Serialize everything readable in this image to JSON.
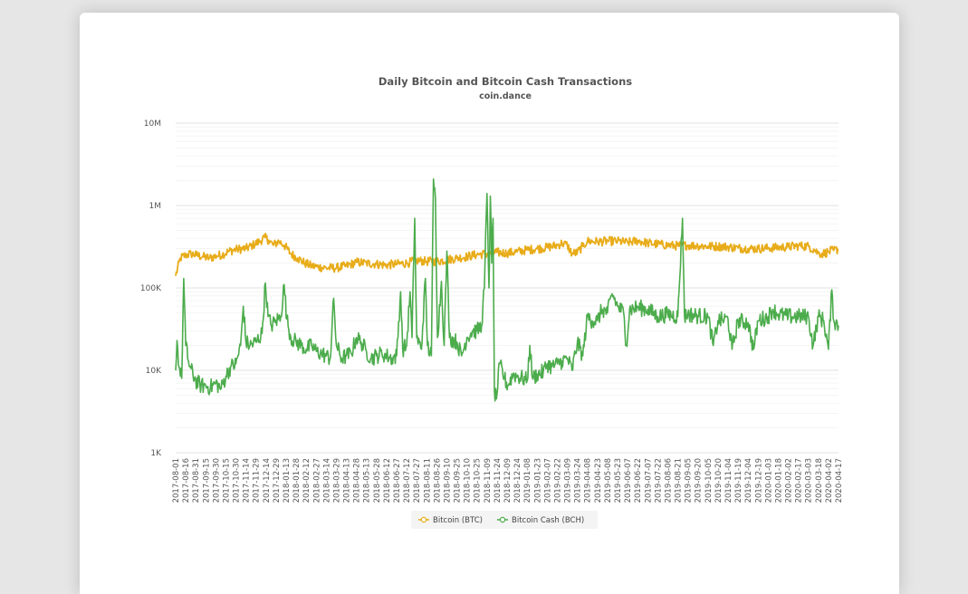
{
  "chart_data": {
    "type": "line",
    "title": "Daily Bitcoin and Bitcoin Cash Transactions",
    "subtitle": "coin.dance",
    "xlabel": "",
    "ylabel": "",
    "y_scale": "log",
    "ylim": [
      1000,
      10000000
    ],
    "y_ticks": [
      {
        "value": 1000,
        "label": "1K"
      },
      {
        "value": 10000,
        "label": "10K"
      },
      {
        "value": 100000,
        "label": "100K"
      },
      {
        "value": 1000000,
        "label": "1M"
      },
      {
        "value": 10000000,
        "label": "10M"
      }
    ],
    "x_range": [
      "2017-08-01",
      "2020-04-17"
    ],
    "x_tick_labels": [
      "2017-08-01",
      "2017-08-16",
      "2017-08-31",
      "2017-09-15",
      "2017-09-30",
      "2017-10-15",
      "2017-10-30",
      "2017-11-14",
      "2017-11-29",
      "2017-12-14",
      "2017-12-29",
      "2018-01-13",
      "2018-01-28",
      "2018-02-12",
      "2018-02-27",
      "2018-03-14",
      "2018-03-29",
      "2018-04-13",
      "2018-04-28",
      "2018-05-13",
      "2018-05-28",
      "2018-06-12",
      "2018-06-27",
      "2018-07-12",
      "2018-07-27",
      "2018-08-11",
      "2018-08-26",
      "2018-09-10",
      "2018-09-25",
      "2018-10-10",
      "2018-10-25",
      "2018-11-09",
      "2018-11-24",
      "2018-12-09",
      "2018-12-24",
      "2019-01-08",
      "2019-01-23",
      "2019-02-07",
      "2019-02-22",
      "2019-03-09",
      "2019-03-24",
      "2019-04-08",
      "2019-04-23",
      "2019-05-08",
      "2019-05-23",
      "2019-06-07",
      "2019-06-22",
      "2019-07-07",
      "2019-07-22",
      "2019-08-06",
      "2019-08-21",
      "2019-09-05",
      "2019-09-20",
      "2019-10-05",
      "2019-10-20",
      "2019-11-04",
      "2019-11-19",
      "2019-12-04",
      "2019-12-19",
      "2020-01-03",
      "2020-01-18",
      "2020-02-02",
      "2020-02-17",
      "2020-03-03",
      "2020-03-18",
      "2020-04-02",
      "2020-04-17"
    ],
    "grid": true,
    "legend_position": "bottom-center",
    "series": [
      {
        "name": "Bitcoin (BTC)",
        "color": "#e8ac19",
        "points": [
          [
            "2017-08-01",
            140000
          ],
          [
            "2017-08-08",
            230000
          ],
          [
            "2017-08-16",
            250000
          ],
          [
            "2017-08-24",
            260000
          ],
          [
            "2017-09-01",
            250000
          ],
          [
            "2017-09-10",
            240000
          ],
          [
            "2017-09-20",
            230000
          ],
          [
            "2017-10-01",
            245000
          ],
          [
            "2017-10-10",
            255000
          ],
          [
            "2017-10-20",
            280000
          ],
          [
            "2017-11-01",
            295000
          ],
          [
            "2017-11-14",
            300000
          ],
          [
            "2017-11-24",
            330000
          ],
          [
            "2017-12-05",
            370000
          ],
          [
            "2017-12-12",
            410000
          ],
          [
            "2017-12-18",
            380000
          ],
          [
            "2017-12-25",
            330000
          ],
          [
            "2018-01-02",
            370000
          ],
          [
            "2018-01-10",
            330000
          ],
          [
            "2018-01-20",
            260000
          ],
          [
            "2018-01-30",
            230000
          ],
          [
            "2018-02-10",
            200000
          ],
          [
            "2018-02-20",
            185000
          ],
          [
            "2018-03-01",
            180000
          ],
          [
            "2018-03-14",
            175000
          ],
          [
            "2018-03-29",
            175000
          ],
          [
            "2018-04-13",
            185000
          ],
          [
            "2018-04-28",
            205000
          ],
          [
            "2018-05-13",
            200000
          ],
          [
            "2018-05-28",
            195000
          ],
          [
            "2018-06-12",
            190000
          ],
          [
            "2018-06-27",
            195000
          ],
          [
            "2018-07-12",
            200000
          ],
          [
            "2018-07-27",
            215000
          ],
          [
            "2018-08-11",
            210000
          ],
          [
            "2018-08-26",
            210000
          ],
          [
            "2018-09-10",
            220000
          ],
          [
            "2018-09-25",
            230000
          ],
          [
            "2018-10-10",
            240000
          ],
          [
            "2018-10-25",
            255000
          ],
          [
            "2018-11-09",
            260000
          ],
          [
            "2018-11-24",
            270000
          ],
          [
            "2018-12-09",
            265000
          ],
          [
            "2018-12-24",
            275000
          ],
          [
            "2019-01-08",
            290000
          ],
          [
            "2019-01-23",
            300000
          ],
          [
            "2019-02-07",
            310000
          ],
          [
            "2019-02-22",
            330000
          ],
          [
            "2019-03-01",
            350000
          ],
          [
            "2019-03-09",
            330000
          ],
          [
            "2019-03-16",
            260000
          ],
          [
            "2019-03-24",
            270000
          ],
          [
            "2019-04-01",
            320000
          ],
          [
            "2019-04-08",
            370000
          ],
          [
            "2019-04-23",
            365000
          ],
          [
            "2019-05-08",
            370000
          ],
          [
            "2019-05-23",
            370000
          ],
          [
            "2019-06-07",
            355000
          ],
          [
            "2019-06-22",
            375000
          ],
          [
            "2019-07-07",
            350000
          ],
          [
            "2019-07-22",
            340000
          ],
          [
            "2019-08-06",
            330000
          ],
          [
            "2019-08-21",
            325000
          ],
          [
            "2019-09-05",
            330000
          ],
          [
            "2019-09-20",
            325000
          ],
          [
            "2019-10-05",
            320000
          ],
          [
            "2019-10-20",
            320000
          ],
          [
            "2019-11-04",
            315000
          ],
          [
            "2019-11-19",
            305000
          ],
          [
            "2019-12-04",
            300000
          ],
          [
            "2019-12-19",
            300000
          ],
          [
            "2020-01-03",
            305000
          ],
          [
            "2020-01-18",
            310000
          ],
          [
            "2020-02-02",
            315000
          ],
          [
            "2020-02-17",
            325000
          ],
          [
            "2020-03-03",
            320000
          ],
          [
            "2020-03-12",
            290000
          ],
          [
            "2020-03-18",
            265000
          ],
          [
            "2020-03-25",
            260000
          ],
          [
            "2020-04-02",
            275000
          ],
          [
            "2020-04-10",
            285000
          ],
          [
            "2020-04-17",
            295000
          ]
        ]
      },
      {
        "name": "Bitcoin Cash (BCH)",
        "color": "#4cac4c",
        "points": [
          [
            "2017-08-01",
            10000
          ],
          [
            "2017-08-03",
            23000
          ],
          [
            "2017-08-06",
            11000
          ],
          [
            "2017-08-10",
            8000
          ],
          [
            "2017-08-13",
            130000
          ],
          [
            "2017-08-16",
            20000
          ],
          [
            "2017-08-22",
            11000
          ],
          [
            "2017-08-31",
            7500
          ],
          [
            "2017-09-08",
            6500
          ],
          [
            "2017-09-15",
            6500
          ],
          [
            "2017-09-22",
            6200
          ],
          [
            "2017-09-30",
            7000
          ],
          [
            "2017-10-08",
            6000
          ],
          [
            "2017-10-15",
            8500
          ],
          [
            "2017-10-22",
            11000
          ],
          [
            "2017-10-30",
            12000
          ],
          [
            "2017-11-06",
            20000
          ],
          [
            "2017-11-10",
            60000
          ],
          [
            "2017-11-14",
            22000
          ],
          [
            "2017-11-20",
            20000
          ],
          [
            "2017-11-29",
            22000
          ],
          [
            "2017-12-08",
            28000
          ],
          [
            "2017-12-13",
            115000
          ],
          [
            "2017-12-17",
            45000
          ],
          [
            "2017-12-22",
            35000
          ],
          [
            "2017-12-29",
            40000
          ],
          [
            "2018-01-05",
            45000
          ],
          [
            "2018-01-10",
            110000
          ],
          [
            "2018-01-14",
            42000
          ],
          [
            "2018-01-20",
            25000
          ],
          [
            "2018-01-28",
            22000
          ],
          [
            "2018-02-05",
            20000
          ],
          [
            "2018-02-12",
            18000
          ],
          [
            "2018-02-20",
            20000
          ],
          [
            "2018-02-27",
            17000
          ],
          [
            "2018-03-07",
            16000
          ],
          [
            "2018-03-14",
            15000
          ],
          [
            "2018-03-20",
            14000
          ],
          [
            "2018-03-25",
            75000
          ],
          [
            "2018-03-29",
            20000
          ],
          [
            "2018-04-06",
            14000
          ],
          [
            "2018-04-13",
            15000
          ],
          [
            "2018-04-20",
            16000
          ],
          [
            "2018-04-28",
            25000
          ],
          [
            "2018-05-05",
            22000
          ],
          [
            "2018-05-13",
            17000
          ],
          [
            "2018-05-20",
            14000
          ],
          [
            "2018-05-28",
            15000
          ],
          [
            "2018-06-05",
            16000
          ],
          [
            "2018-06-12",
            15000
          ],
          [
            "2018-06-20",
            14000
          ],
          [
            "2018-06-27",
            15000
          ],
          [
            "2018-07-03",
            90000
          ],
          [
            "2018-07-06",
            18000
          ],
          [
            "2018-07-12",
            20000
          ],
          [
            "2018-07-17",
            90000
          ],
          [
            "2018-07-20",
            25000
          ],
          [
            "2018-07-24",
            700000
          ],
          [
            "2018-07-27",
            25000
          ],
          [
            "2018-08-03",
            18000
          ],
          [
            "2018-08-09",
            130000
          ],
          [
            "2018-08-12",
            20000
          ],
          [
            "2018-08-18",
            15000
          ],
          [
            "2018-08-21",
            2100000
          ],
          [
            "2018-08-24",
            1200000
          ],
          [
            "2018-08-27",
            25000
          ],
          [
            "2018-09-02",
            120000
          ],
          [
            "2018-09-06",
            20000
          ],
          [
            "2018-09-10",
            280000
          ],
          [
            "2018-09-14",
            25000
          ],
          [
            "2018-09-25",
            22000
          ],
          [
            "2018-10-02",
            15000
          ],
          [
            "2018-10-10",
            25000
          ],
          [
            "2018-10-18",
            30000
          ],
          [
            "2018-10-25",
            30000
          ],
          [
            "2018-11-01",
            35000
          ],
          [
            "2018-11-05",
            100000
          ],
          [
            "2018-11-09",
            1400000
          ],
          [
            "2018-11-12",
            100000
          ],
          [
            "2018-11-14",
            1300000
          ],
          [
            "2018-11-16",
            200000
          ],
          [
            "2018-11-18",
            700000
          ],
          [
            "2018-11-20",
            5500
          ],
          [
            "2018-11-23",
            4500
          ],
          [
            "2018-11-28",
            12000
          ],
          [
            "2018-12-05",
            8000
          ],
          [
            "2018-12-10",
            6500
          ],
          [
            "2018-12-18",
            9000
          ],
          [
            "2018-12-24",
            8500
          ],
          [
            "2019-01-01",
            8000
          ],
          [
            "2019-01-08",
            7500
          ],
          [
            "2019-01-12",
            20000
          ],
          [
            "2019-01-16",
            8000
          ],
          [
            "2019-01-23",
            9000
          ],
          [
            "2019-02-01",
            9500
          ],
          [
            "2019-02-07",
            12000
          ],
          [
            "2019-02-14",
            11000
          ],
          [
            "2019-02-22",
            12000
          ],
          [
            "2019-03-01",
            13000
          ],
          [
            "2019-03-09",
            14000
          ],
          [
            "2019-03-16",
            10000
          ],
          [
            "2019-03-24",
            22000
          ],
          [
            "2019-04-01",
            15000
          ],
          [
            "2019-04-08",
            45000
          ],
          [
            "2019-04-15",
            40000
          ],
          [
            "2019-04-23",
            40000
          ],
          [
            "2019-04-30",
            55000
          ],
          [
            "2019-05-08",
            50000
          ],
          [
            "2019-05-15",
            85000
          ],
          [
            "2019-05-23",
            60000
          ],
          [
            "2019-06-01",
            50000
          ],
          [
            "2019-06-05",
            20000
          ],
          [
            "2019-06-10",
            55000
          ],
          [
            "2019-06-22",
            58000
          ],
          [
            "2019-07-07",
            55000
          ],
          [
            "2019-07-22",
            45000
          ],
          [
            "2019-08-06",
            48000
          ],
          [
            "2019-08-21",
            45000
          ],
          [
            "2019-08-28",
            700000
          ],
          [
            "2019-08-31",
            45000
          ],
          [
            "2019-09-05",
            48000
          ],
          [
            "2019-09-20",
            46000
          ],
          [
            "2019-10-05",
            45000
          ],
          [
            "2019-10-13",
            20000
          ],
          [
            "2019-10-20",
            40000
          ],
          [
            "2019-11-04",
            42000
          ],
          [
            "2019-11-10",
            18000
          ],
          [
            "2019-11-19",
            40000
          ],
          [
            "2019-12-04",
            38000
          ],
          [
            "2019-12-12",
            18000
          ],
          [
            "2019-12-19",
            40000
          ],
          [
            "2020-01-03",
            45000
          ],
          [
            "2020-01-10",
            55000
          ],
          [
            "2020-01-18",
            48000
          ],
          [
            "2020-02-02",
            45000
          ],
          [
            "2020-02-17",
            45000
          ],
          [
            "2020-03-03",
            45000
          ],
          [
            "2020-03-10",
            20000
          ],
          [
            "2020-03-18",
            45000
          ],
          [
            "2020-03-26",
            40000
          ],
          [
            "2020-04-02",
            18000
          ],
          [
            "2020-04-07",
            95000
          ],
          [
            "2020-04-10",
            40000
          ],
          [
            "2020-04-17",
            35000
          ]
        ]
      }
    ]
  }
}
